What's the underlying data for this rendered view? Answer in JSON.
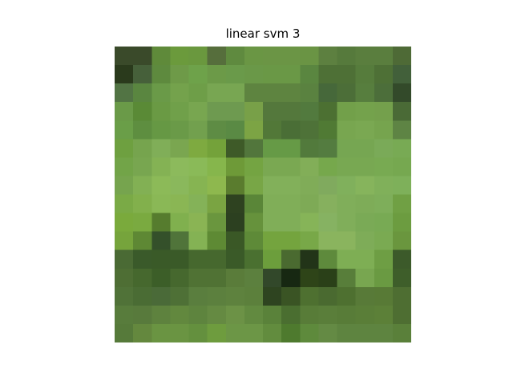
{
  "title": "linear svm 3",
  "image": {
    "rows": 16,
    "cols": 16,
    "pixels": [
      [
        "#3a4a2a",
        "#3a4a2a",
        "#5f8a3a",
        "#6b9a3c",
        "#6a983e",
        "#566e3c",
        "#5f8a3f",
        "#6a9644",
        "#6b9545",
        "#6b9545",
        "#6a9444",
        "#5d8040",
        "#567a3c",
        "#5a7e3e",
        "#5a7e3e",
        "#4e6a36"
      ],
      [
        "#2a3a1c",
        "#46603a",
        "#5e8a3e",
        "#6e9a48",
        "#6ea24a",
        "#6c9a48",
        "#6a9a4a",
        "#6a9848",
        "#6a9846",
        "#6a9846",
        "#5a8640",
        "#4e7036",
        "#4e7036",
        "#567c3c",
        "#4e7036",
        "#42603a"
      ],
      [
        "#527444",
        "#5a8640",
        "#6a9a48",
        "#74a24c",
        "#6e9e48",
        "#78a652",
        "#78a652",
        "#5e8440",
        "#5e8440",
        "#5e8440",
        "#5a8240",
        "#46683a",
        "#4c6e38",
        "#577e3e",
        "#4c6e3a",
        "#334a2a"
      ],
      [
        "#6a9a48",
        "#5a8a36",
        "#6a9a44",
        "#70a04a",
        "#78a650",
        "#6e9a50",
        "#6e9a50",
        "#78a048",
        "#54783c",
        "#54783c",
        "#527a3e",
        "#4c7032",
        "#72a04a",
        "#74a24c",
        "#74a04c",
        "#4a6a36"
      ],
      [
        "#6a9e48",
        "#5e8e40",
        "#669844",
        "#6a9a48",
        "#72a04e",
        "#5e8c44",
        "#5a8a44",
        "#7ca444",
        "#527838",
        "#4a6e36",
        "#4e7238",
        "#507a34",
        "#78a650",
        "#7aa852",
        "#76a44e",
        "#5e8444"
      ],
      [
        "#6ea040",
        "#76a44e",
        "#80ae58",
        "#7aa650",
        "#7eaa40",
        "#74a23a",
        "#3e5a28",
        "#52763c",
        "#669a46",
        "#669a46",
        "#527a3c",
        "#547c40",
        "#76a652",
        "#76a652",
        "#7aaa58",
        "#78aa54"
      ],
      [
        "#72a448",
        "#78a650",
        "#84b254",
        "#8cba5c",
        "#8aba58",
        "#86b64c",
        "#6e9a38",
        "#74a442",
        "#7aa852",
        "#7aa852",
        "#82ae58",
        "#76a84c",
        "#78a852",
        "#78a852",
        "#78aa52",
        "#76a850"
      ],
      [
        "#76a44e",
        "#82b054",
        "#8cba58",
        "#8ab85c",
        "#86b452",
        "#8eb84e",
        "#5a7c2e",
        "#78a646",
        "#82b05a",
        "#82b05a",
        "#80ac58",
        "#80aa5e",
        "#80b05c",
        "#86b45c",
        "#80b05a",
        "#7eb05a"
      ],
      [
        "#7aaa46",
        "#82b04c",
        "#8ab856",
        "#8ab654",
        "#84b258",
        "#7aa442",
        "#2e4220",
        "#5a8638",
        "#80ae58",
        "#80ae58",
        "#7eaa56",
        "#86b05e",
        "#80ae5a",
        "#7eac58",
        "#7eae5a",
        "#70a044"
      ],
      [
        "#7aaa3c",
        "#7aaa40",
        "#567c2e",
        "#80b04e",
        "#8ab454",
        "#6a963e",
        "#2c4020",
        "#66923c",
        "#80ae58",
        "#80ae58",
        "#86b458",
        "#86b262",
        "#80ae5a",
        "#7aaa56",
        "#78aa54",
        "#6c9c40"
      ],
      [
        "#76a43c",
        "#5e8834",
        "#34502a",
        "#50743a",
        "#84b254",
        "#5e8a34",
        "#3a5826",
        "#5e8a38",
        "#74a43e",
        "#74a43e",
        "#78a848",
        "#8ab45e",
        "#8ab45e",
        "#7eac58",
        "#7aaa52",
        "#6a963e"
      ],
      [
        "#4a6a34",
        "#3a5a2a",
        "#3a5a28",
        "#3a5a28",
        "#46682e",
        "#46682e",
        "#3a5a28",
        "#4a7030",
        "#6c9e3c",
        "#4a6a30",
        "#223418",
        "#5e8a3c",
        "#7eae54",
        "#7eae54",
        "#6e9e44",
        "#3c5a2a"
      ],
      [
        "#4e6e34",
        "#46682e",
        "#3c5e28",
        "#46682e",
        "#507234",
        "#507234",
        "#5a7c3a",
        "#5c803e",
        "#32482a",
        "#172812",
        "#2e4418",
        "#2a4018",
        "#587e3a",
        "#78a650",
        "#6a9a42",
        "#3e5e2a"
      ],
      [
        "#507238",
        "#4a6c34",
        "#4a6a38",
        "#4e7036",
        "#5a7e3e",
        "#5c803e",
        "#5e823e",
        "#5c803c",
        "#2e4420",
        "#3a5424",
        "#4e7030",
        "#4a6a30",
        "#4e7030",
        "#587a38",
        "#587a36",
        "#4e6e32"
      ],
      [
        "#587c3c",
        "#587a3c",
        "#5e823e",
        "#62883e",
        "#5e843e",
        "#658a42",
        "#6c9246",
        "#628a40",
        "#5a823a",
        "#4a6e30",
        "#587c38",
        "#5a7e3a",
        "#587c38",
        "#5a7e38",
        "#5c8038",
        "#4e6e32"
      ],
      [
        "#567a3a",
        "#64883e",
        "#6a9442",
        "#6a9442",
        "#64903e",
        "#6e9c3e",
        "#6c9646",
        "#6c9646",
        "#628c3e",
        "#4e7a2e",
        "#5e8a3c",
        "#648a44",
        "#5e8440",
        "#5e8440",
        "#5e8440",
        "#5a803a"
      ]
    ]
  }
}
